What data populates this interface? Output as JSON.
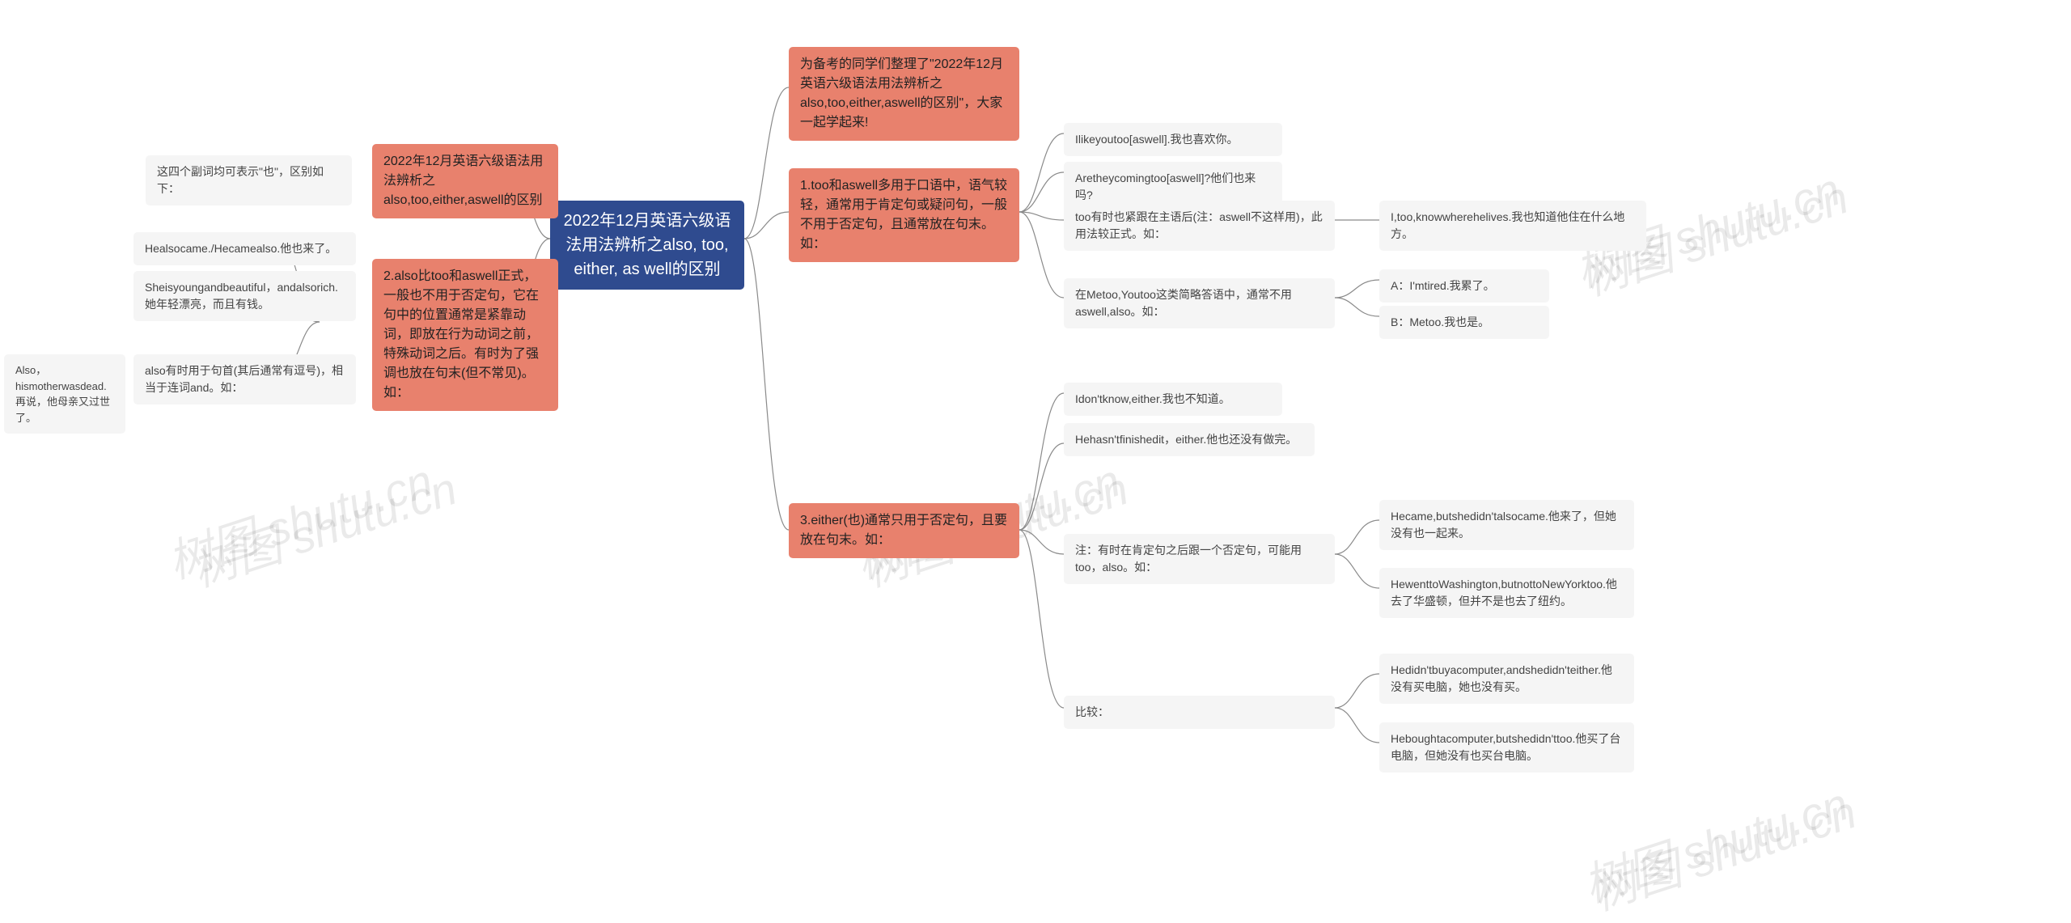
{
  "watermarks": {
    "wm1": "树图 shutu.cn",
    "wm2": "树图 shutu.cn",
    "wm3": "树图 shutu.cn",
    "wm4": "树图 shutu.cn"
  },
  "root": {
    "title": "2022年12月英语六级语法用法辨析之also, too, either, as well的区别"
  },
  "styling": {
    "root_bg": "#2f4b8f",
    "root_color": "#ffffff",
    "branch_bg": "#e8816d",
    "branch_color": "#222222",
    "leaf_bg": "#f5f5f5",
    "leaf_color": "#444444",
    "connector_color": "#8a8a8a",
    "background": "#ffffff",
    "root_fontsize": 20,
    "branch_fontsize": 16,
    "leaf_fontsize": 14
  },
  "right": {
    "intro": "为备考的同学们整理了\"2022年12月英语六级语法用法辨析之also,too,either,aswell的区别\"，大家一起学起来!",
    "b1": {
      "title": "1.too和aswell多用于口语中，语气较轻，通常用于肯定句或疑问句，一般不用于否定句，且通常放在句末。如：",
      "c1": "Ilikeyoutoo[aswell].我也喜欢你。",
      "c2": "Aretheycomingtoo[aswell]?他们也来吗?",
      "c3": {
        "label": "too有时也紧跟在主语后(注：aswell不这样用)，此用法较正式。如：",
        "d1": "I,too,knowwherehelives.我也知道他住在什么地方。"
      },
      "c4": {
        "label": "在Metoo,Youtoo这类简略答语中，通常不用aswell,also。如：",
        "d1": "A：I'mtired.我累了。",
        "d2": "B：Metoo.我也是。"
      }
    },
    "b3": {
      "title": "3.either(也)通常只用于否定句，且要放在句末。如：",
      "c1": "Idon'tknow,either.我也不知道。",
      "c2": "Hehasn'tfinishedit，either.他也还没有做完。",
      "c3": {
        "label": "注：有时在肯定句之后跟一个否定句，可能用too，also。如：",
        "d1": "Hecame,butshedidn'talsocame.他来了，但她没有也一起来。",
        "d2": "HewenttoWashington,butnottoNewYorktoo.他去了华盛顿，但并不是也去了纽约。"
      },
      "c4": {
        "label": "比较：",
        "d1": "Hedidn'tbuyacomputer,andshedidn'teither.他没有买电脑，她也没有买。",
        "d2": "Heboughtacomputer,butshedidn'ttoo.他买了台电脑，但她没有也买台电脑。"
      }
    }
  },
  "left": {
    "b1": {
      "title": "2022年12月英语六级语法用法辨析之also,too,either,aswell的区别",
      "c1": "这四个副词均可表示\"也\"，区别如下："
    },
    "b2": {
      "title": "2.also比too和aswell正式，一般也不用于否定句，它在句中的位置通常是紧靠动词，即放在行为动词之前，特殊动词之后。有时为了强调也放在句末(但不常见)。如：",
      "c1": "Healsocame./Hecamealso.他也来了。",
      "c2": "Sheisyoungandbeautiful，andalsorich.她年轻漂亮，而且有钱。",
      "c3": {
        "label": "also有时用于句首(其后通常有逗号)，相当于连词and。如：",
        "d1": "Also，hismotherwasdead.再说，他母亲又过世了。"
      }
    }
  }
}
